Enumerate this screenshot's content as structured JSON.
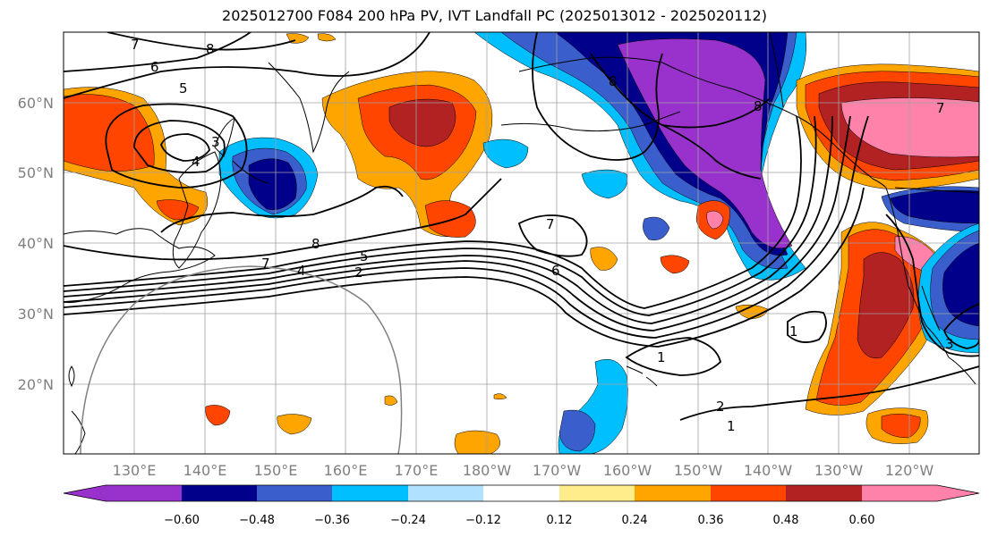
{
  "title": "2025012700 F084 200 hPa PV, IVT Landfall PC (2025013012 - 2025020112)",
  "colors": {
    "c_n60": "#9932cc",
    "c_n48": "#00008b",
    "c_n36": "#3a5fcd",
    "c_n24": "#00bfff",
    "c_n12": "#b0e2ff",
    "c_mid": "#ffffff",
    "c_p12": "#ffec8b",
    "c_p24": "#ffa500",
    "c_p36": "#ff4500",
    "c_p48": "#b22222",
    "c_p60": "#ff82ab",
    "coast": "#000000",
    "grid": "#a0a0a0",
    "ring": "#808080"
  },
  "lat_labels": [
    "60°N",
    "50°N",
    "40°N",
    "30°N",
    "20°N"
  ],
  "lon_labels": [
    "130°E",
    "140°E",
    "150°E",
    "160°E",
    "170°E",
    "180°W",
    "170°W",
    "160°W",
    "150°W",
    "140°W",
    "130°W",
    "120°W"
  ],
  "colorbar": {
    "ticks": [
      "−0.60",
      "−0.48",
      "−0.36",
      "−0.24",
      "−0.12",
      "0.12",
      "0.24",
      "0.36",
      "0.48",
      "0.60"
    ]
  },
  "contour_labels": [
    "7",
    "8",
    "6",
    "5",
    "3",
    "4",
    "8",
    "8",
    "7",
    "7",
    "5",
    "4",
    "2",
    "7",
    "6",
    "1",
    "1",
    "2",
    "1",
    "3",
    "8"
  ],
  "icons": [
    "jet-contours",
    "pv-shading",
    "coastline"
  ]
}
